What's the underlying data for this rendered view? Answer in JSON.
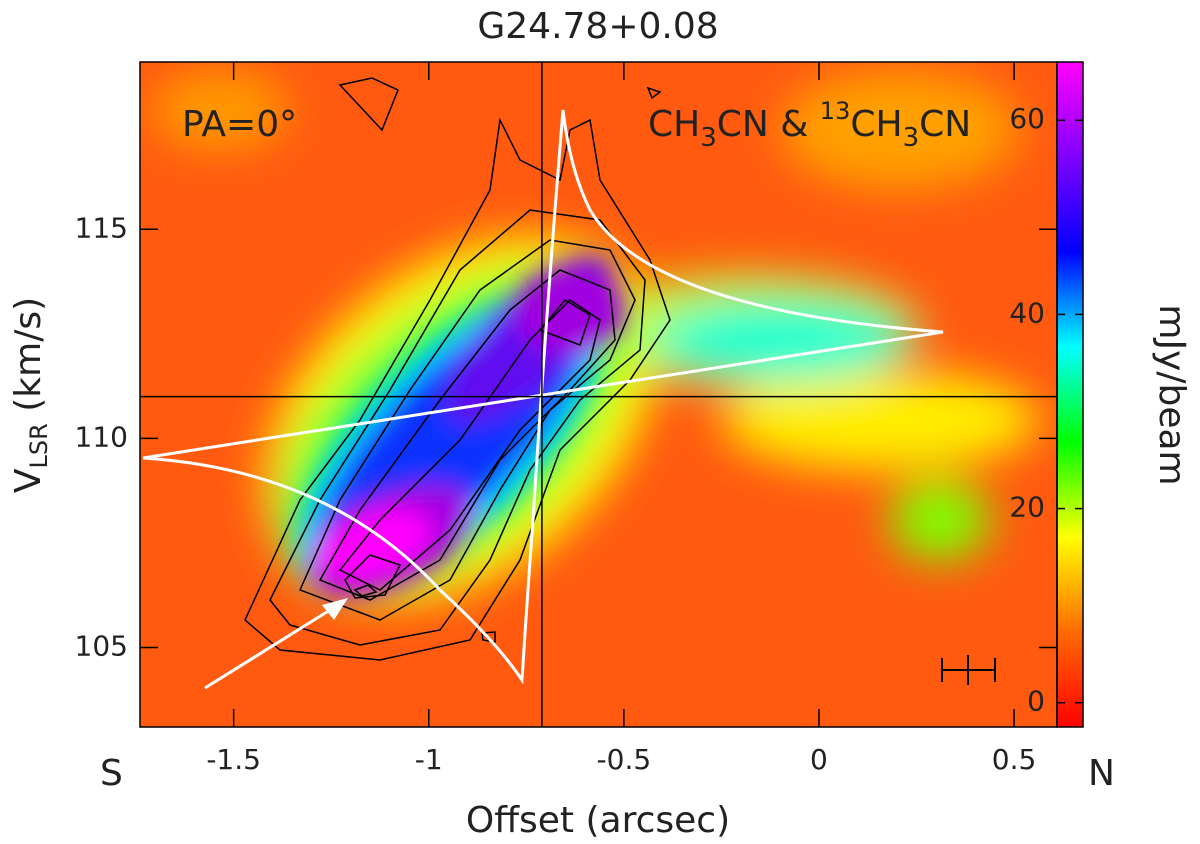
{
  "chart_data": {
    "type": "pv-diagram",
    "title": "G24.78+0.08",
    "x_label": "Offset (arcsec)",
    "y_label": [
      "V",
      "LSR",
      " (km/s)"
    ],
    "colorbar_label": "mJy/beam",
    "annotations": {
      "pa": "PA=0°",
      "lines": [
        "CH",
        "3",
        "CN & ",
        "13",
        "CH",
        "3",
        "CN"
      ],
      "left": "S",
      "right": "N"
    },
    "xlim": [
      -1.74,
      0.61
    ],
    "xticks": [
      -1.5,
      -1,
      -0.5,
      0,
      0.5
    ],
    "ylim": [
      103.1,
      119
    ],
    "yticks": [
      105,
      110,
      115
    ],
    "clim": [
      -2.5,
      66
    ],
    "cticks": [
      0,
      20,
      40,
      60
    ],
    "colormap": [
      "#ff0000",
      "#ff6a00",
      "#ffff00",
      "#00ff00",
      "#00ffff",
      "#0000ff",
      "#8000ff",
      "#ff00ff"
    ],
    "crosshair": {
      "x": -0.71,
      "y": 111
    }
  }
}
